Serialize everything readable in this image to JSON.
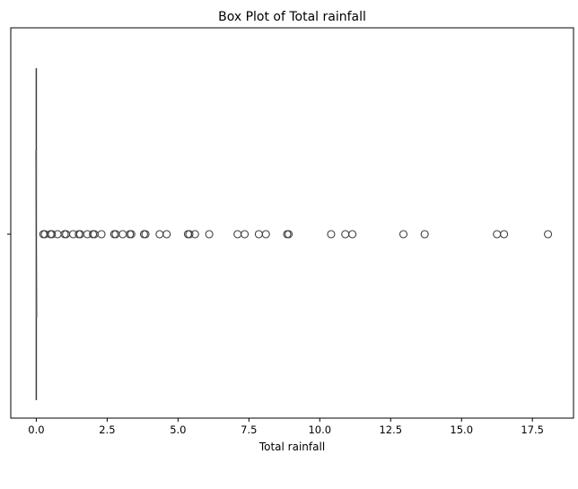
{
  "chart_data": {
    "type": "box",
    "title": "Box Plot of Total rainfall",
    "xlabel": "Total rainfall",
    "ylabel": "",
    "xlim": [
      -0.9,
      18.95
    ],
    "x_ticks": [
      0.0,
      2.5,
      5.0,
      7.5,
      10.0,
      12.5,
      15.0,
      17.5
    ],
    "x_tick_labels": [
      "0.0",
      "2.5",
      "5.0",
      "7.5",
      "10.0",
      "12.5",
      "15.0",
      "17.5"
    ],
    "grid": false,
    "box": {
      "min": 0.0,
      "q1": 0.0,
      "median": 0.0,
      "q3": 0.0,
      "max": 0.0
    },
    "outliers": [
      0.25,
      0.3,
      0.5,
      0.55,
      0.75,
      1.0,
      1.05,
      1.3,
      1.5,
      1.55,
      1.8,
      2.0,
      2.05,
      2.3,
      2.75,
      2.8,
      3.05,
      3.3,
      3.35,
      3.8,
      3.85,
      4.35,
      4.6,
      5.35,
      5.4,
      5.6,
      6.1,
      7.1,
      7.35,
      7.85,
      8.1,
      8.85,
      8.9,
      10.4,
      10.9,
      11.15,
      12.95,
      13.7,
      16.25,
      16.5,
      18.05
    ],
    "colors": {
      "box_edge": "#3d3d3d",
      "outlier_edge": "#3d3d3d",
      "axes": "#000000"
    }
  }
}
